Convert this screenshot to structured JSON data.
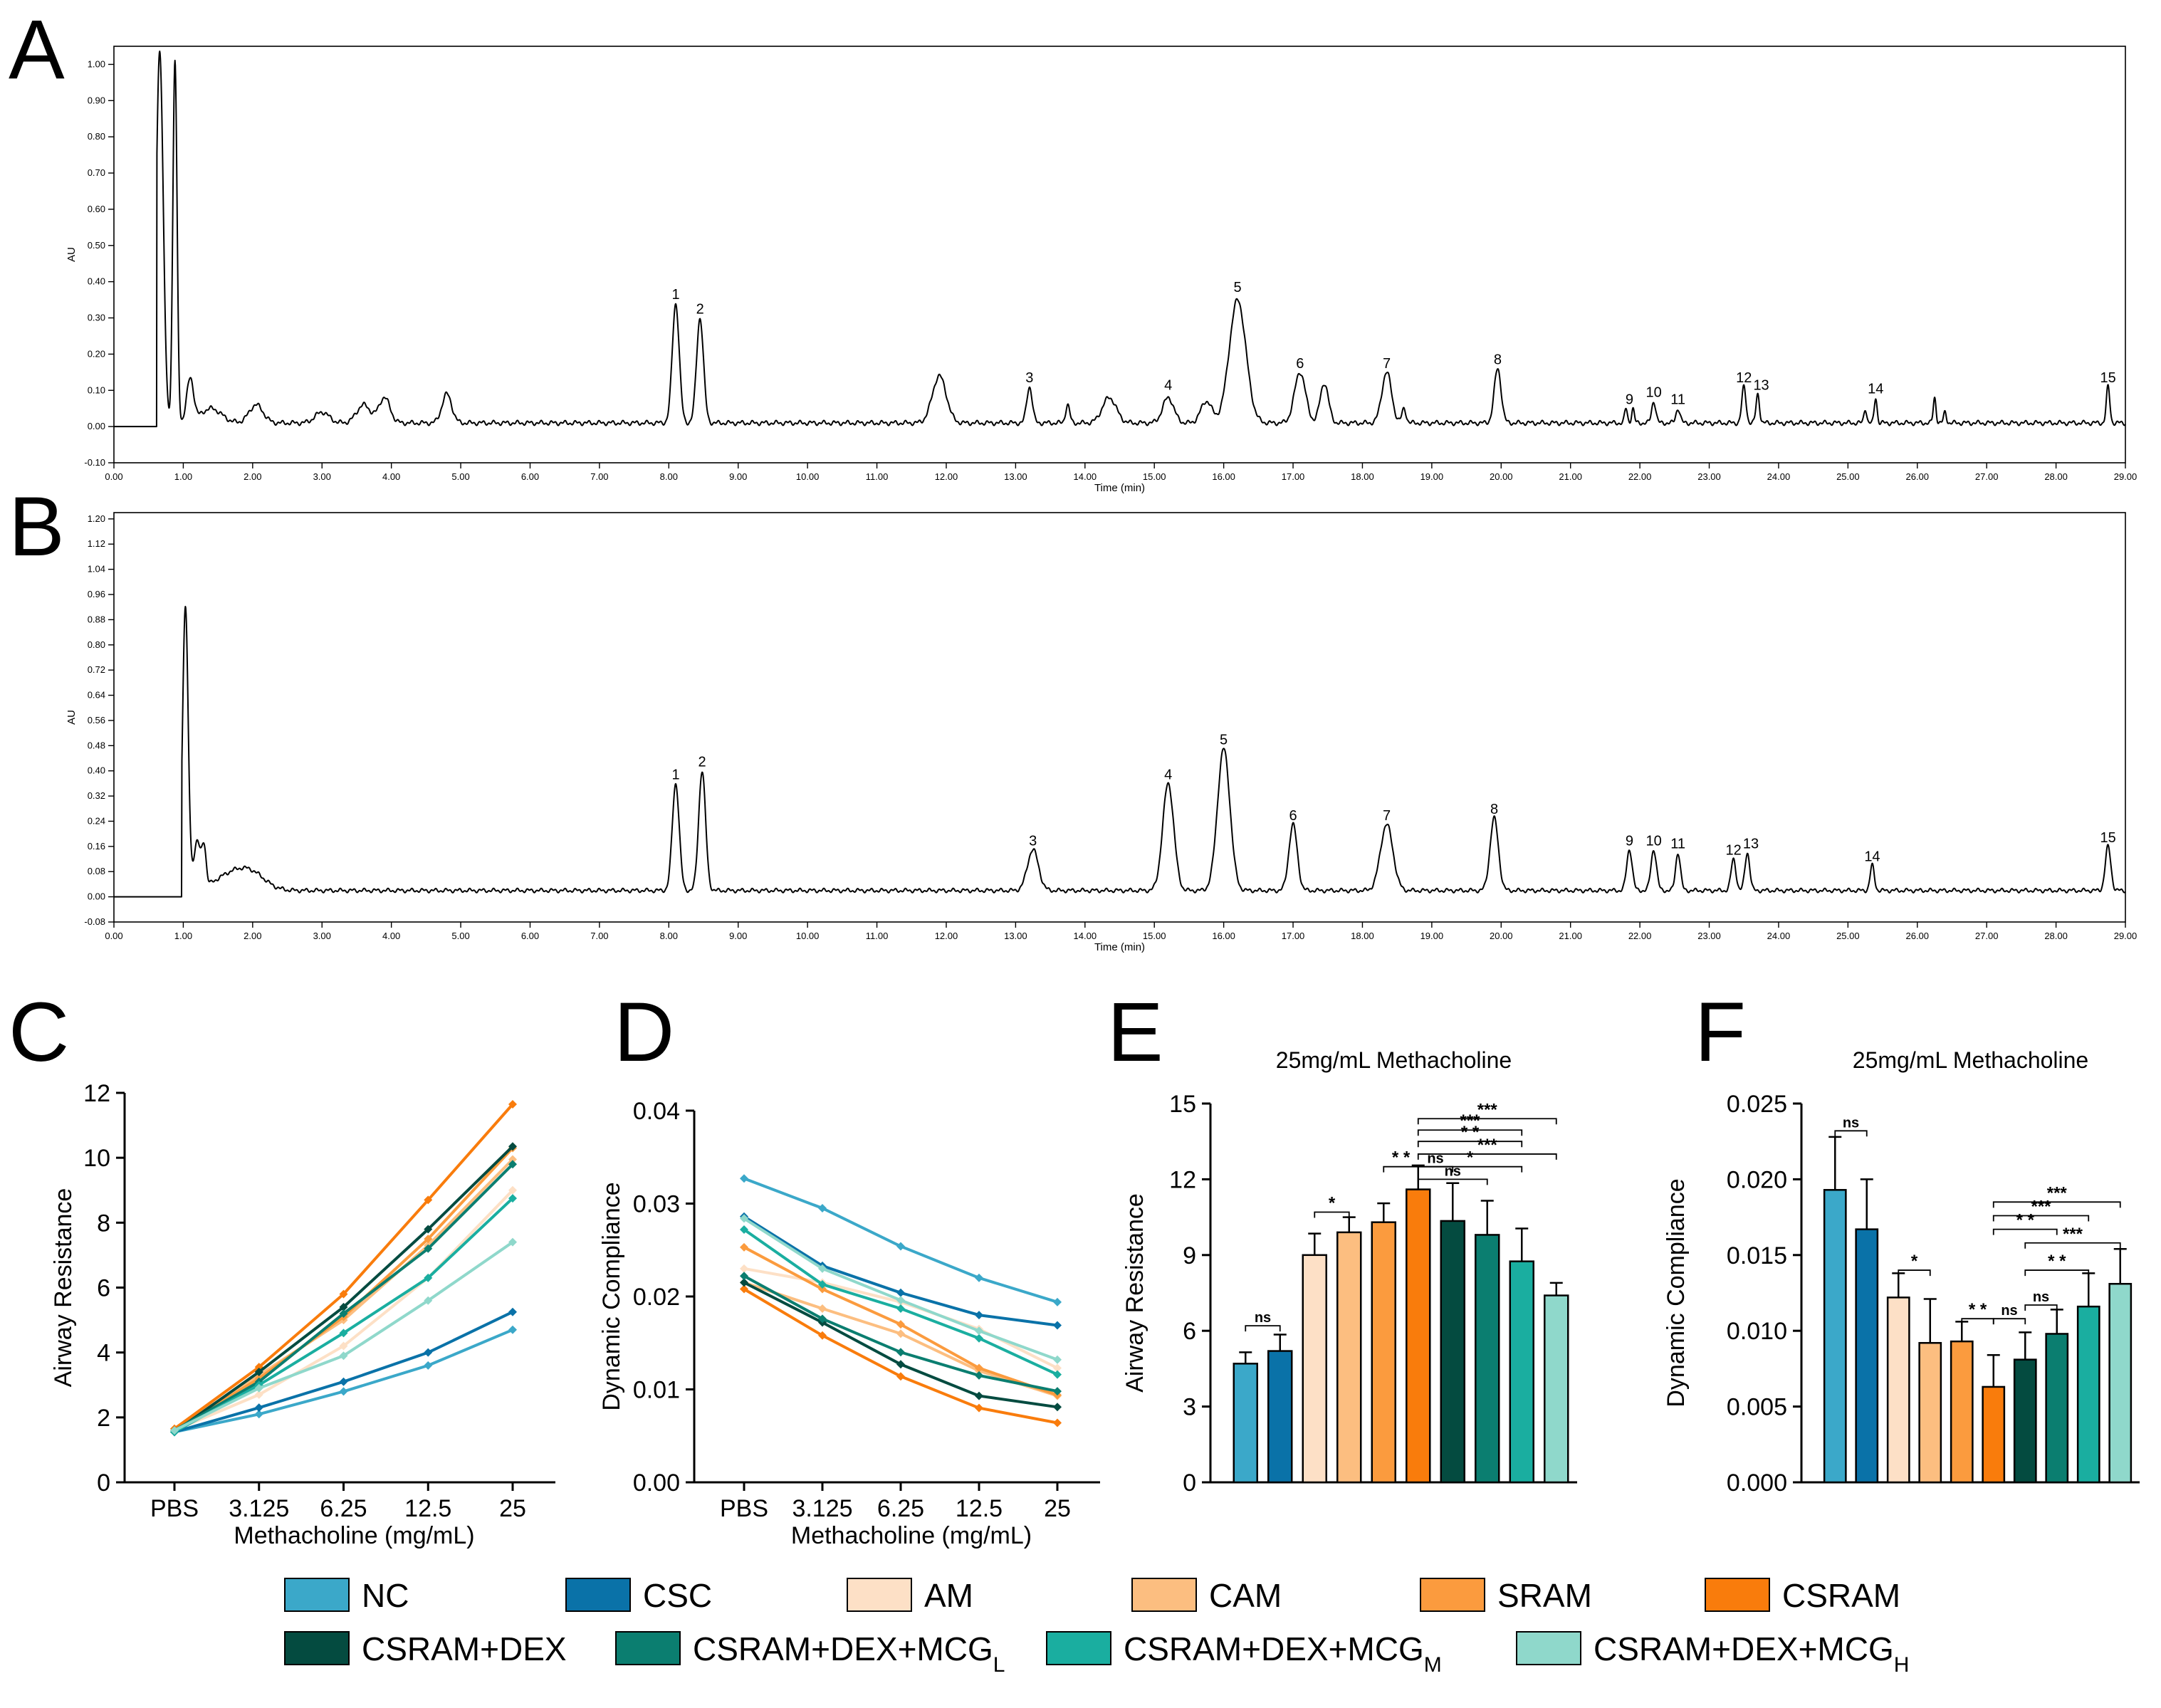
{
  "colors": {
    "NC": "#3ba8c9",
    "CSC": "#0a72a8",
    "AM": "#fde0c6",
    "CAM": "#fcbe80",
    "SRAM": "#fb9b3e",
    "CSRAM": "#f97c0c",
    "CSRAM+DEX": "#044b40",
    "CSRAM+DEX+MCG_L": "#0b7e70",
    "CSRAM+DEX+MCG_M": "#1aaea0",
    "CSRAM+DEX+MCG_H": "#8fd8cb"
  },
  "legend": [
    {
      "key": "NC",
      "label": "NC",
      "sub": ""
    },
    {
      "key": "CSC",
      "label": "CSC",
      "sub": ""
    },
    {
      "key": "AM",
      "label": "AM",
      "sub": ""
    },
    {
      "key": "CAM",
      "label": "CAM",
      "sub": ""
    },
    {
      "key": "SRAM",
      "label": "SRAM",
      "sub": ""
    },
    {
      "key": "CSRAM",
      "label": "CSRAM",
      "sub": ""
    },
    {
      "key": "CSRAM+DEX",
      "label": "CSRAM+DEX",
      "sub": ""
    },
    {
      "key": "CSRAM+DEX+MCG_L",
      "label": "CSRAM+DEX+MCG",
      "sub": "L"
    },
    {
      "key": "CSRAM+DEX+MCG_M",
      "label": "CSRAM+DEX+MCG",
      "sub": "M"
    },
    {
      "key": "CSRAM+DEX+MCG_H",
      "label": "CSRAM+DEX+MCG",
      "sub": "H"
    }
  ],
  "chart_data": [
    {
      "panel": "A",
      "type": "line",
      "xlabel": "Time (min)",
      "ylabel": "AU",
      "xlim": [
        0,
        29
      ],
      "ylim": [
        -0.1,
        1.05
      ],
      "x_ticks": [
        "0.00",
        "1.00",
        "2.00",
        "3.00",
        "4.00",
        "5.00",
        "6.00",
        "7.00",
        "8.00",
        "9.00",
        "10.00",
        "11.00",
        "12.00",
        "13.00",
        "14.00",
        "15.00",
        "16.00",
        "17.00",
        "18.00",
        "19.00",
        "20.00",
        "21.00",
        "22.00",
        "23.00",
        "24.00",
        "25.00",
        "26.00",
        "27.00",
        "28.00",
        "29.00"
      ],
      "y_ticks": [
        "-0.10",
        "0.00",
        "0.10",
        "0.20",
        "0.30",
        "0.40",
        "0.50",
        "0.60",
        "0.70",
        "0.80",
        "0.90",
        "1.00"
      ],
      "baseline": 0.01,
      "peaks": [
        [
          0.66,
          1.03,
          0.05
        ],
        [
          0.88,
          1.0,
          0.03
        ],
        [
          1.1,
          0.12,
          0.05
        ],
        [
          1.4,
          0.04,
          0.15
        ],
        [
          2.05,
          0.05,
          0.1
        ],
        [
          3.0,
          0.03,
          0.1
        ],
        [
          3.6,
          0.05,
          0.1
        ],
        [
          3.9,
          0.07,
          0.08
        ],
        [
          4.8,
          0.08,
          0.07
        ],
        [
          8.1,
          0.33,
          0.05
        ],
        [
          8.45,
          0.29,
          0.05
        ],
        [
          11.9,
          0.13,
          0.1
        ],
        [
          13.2,
          0.1,
          0.04
        ],
        [
          13.75,
          0.05,
          0.03
        ],
        [
          14.35,
          0.07,
          0.1
        ],
        [
          15.2,
          0.07,
          0.08
        ],
        [
          15.75,
          0.06,
          0.08
        ],
        [
          16.2,
          0.34,
          0.12
        ],
        [
          17.1,
          0.14,
          0.08
        ],
        [
          17.45,
          0.11,
          0.06
        ],
        [
          18.35,
          0.14,
          0.07
        ],
        [
          18.6,
          0.04,
          0.03
        ],
        [
          19.95,
          0.15,
          0.05
        ],
        [
          21.8,
          0.04,
          0.02
        ],
        [
          21.9,
          0.04,
          0.02
        ],
        [
          22.2,
          0.06,
          0.03
        ],
        [
          22.55,
          0.04,
          0.03
        ],
        [
          23.5,
          0.1,
          0.03
        ],
        [
          23.7,
          0.08,
          0.025
        ],
        [
          25.25,
          0.04,
          0.02
        ],
        [
          25.4,
          0.07,
          0.02
        ],
        [
          26.25,
          0.07,
          0.02
        ],
        [
          26.4,
          0.03,
          0.02
        ],
        [
          28.75,
          0.1,
          0.025
        ]
      ],
      "peak_labels": [
        {
          "n": "1",
          "t": 8.1,
          "h": 0.34
        },
        {
          "n": "2",
          "t": 8.45,
          "h": 0.3
        },
        {
          "n": "3",
          "t": 13.2,
          "h": 0.11
        },
        {
          "n": "4",
          "t": 15.2,
          "h": 0.09
        },
        {
          "n": "5",
          "t": 16.2,
          "h": 0.36
        },
        {
          "n": "6",
          "t": 17.1,
          "h": 0.15
        },
        {
          "n": "7",
          "t": 18.35,
          "h": 0.15
        },
        {
          "n": "8",
          "t": 19.95,
          "h": 0.16
        },
        {
          "n": "9",
          "t": 21.85,
          "h": 0.05
        },
        {
          "n": "10",
          "t": 22.2,
          "h": 0.07
        },
        {
          "n": "11",
          "t": 22.55,
          "h": 0.05
        },
        {
          "n": "12",
          "t": 23.5,
          "h": 0.11
        },
        {
          "n": "13",
          "t": 23.75,
          "h": 0.09
        },
        {
          "n": "14",
          "t": 25.4,
          "h": 0.08
        },
        {
          "n": "15",
          "t": 28.75,
          "h": 0.11
        }
      ]
    },
    {
      "panel": "B",
      "type": "line",
      "xlabel": "Time (min)",
      "ylabel": "AU",
      "xlim": [
        0,
        29
      ],
      "ylim": [
        -0.08,
        1.22
      ],
      "x_ticks": [
        "0.00",
        "1.00",
        "2.00",
        "3.00",
        "4.00",
        "5.00",
        "6.00",
        "7.00",
        "8.00",
        "9.00",
        "10.00",
        "11.00",
        "12.00",
        "13.00",
        "14.00",
        "15.00",
        "16.00",
        "17.00",
        "18.00",
        "19.00",
        "20.00",
        "21.00",
        "22.00",
        "23.00",
        "24.00",
        "25.00",
        "26.00",
        "27.00",
        "28.00",
        "29.00"
      ],
      "y_ticks": [
        "-0.08",
        "0.00",
        "0.08",
        "0.16",
        "0.24",
        "0.32",
        "0.40",
        "0.48",
        "0.56",
        "0.64",
        "0.72",
        "0.80",
        "0.88",
        "0.96",
        "1.04",
        "1.12",
        "1.20"
      ],
      "baseline": 0.02,
      "peaks": [
        [
          1.03,
          0.9,
          0.04
        ],
        [
          1.2,
          0.15,
          0.05
        ],
        [
          1.3,
          0.12,
          0.03
        ],
        [
          1.7,
          0.05,
          0.25
        ],
        [
          2.0,
          0.04,
          0.2
        ],
        [
          8.1,
          0.34,
          0.05
        ],
        [
          8.48,
          0.38,
          0.05
        ],
        [
          13.25,
          0.13,
          0.08
        ],
        [
          15.2,
          0.34,
          0.08
        ],
        [
          16.0,
          0.45,
          0.09
        ],
        [
          17.0,
          0.21,
          0.06
        ],
        [
          18.35,
          0.21,
          0.09
        ],
        [
          19.9,
          0.23,
          0.06
        ],
        [
          21.85,
          0.13,
          0.04
        ],
        [
          22.2,
          0.13,
          0.04
        ],
        [
          22.55,
          0.12,
          0.035
        ],
        [
          23.35,
          0.1,
          0.035
        ],
        [
          23.55,
          0.12,
          0.035
        ],
        [
          25.35,
          0.08,
          0.03
        ],
        [
          28.75,
          0.14,
          0.04
        ]
      ],
      "peak_labels": [
        {
          "n": "1",
          "t": 8.1,
          "h": 0.36
        },
        {
          "n": "2",
          "t": 8.48,
          "h": 0.4
        },
        {
          "n": "3",
          "t": 13.25,
          "h": 0.15
        },
        {
          "n": "4",
          "t": 15.2,
          "h": 0.36
        },
        {
          "n": "5",
          "t": 16.0,
          "h": 0.47
        },
        {
          "n": "6",
          "t": 17.0,
          "h": 0.23
        },
        {
          "n": "7",
          "t": 18.35,
          "h": 0.23
        },
        {
          "n": "8",
          "t": 19.9,
          "h": 0.25
        },
        {
          "n": "9",
          "t": 21.85,
          "h": 0.15
        },
        {
          "n": "10",
          "t": 22.2,
          "h": 0.15
        },
        {
          "n": "11",
          "t": 22.55,
          "h": 0.14
        },
        {
          "n": "12",
          "t": 23.35,
          "h": 0.12
        },
        {
          "n": "13",
          "t": 23.6,
          "h": 0.14
        },
        {
          "n": "14",
          "t": 25.35,
          "h": 0.1
        },
        {
          "n": "15",
          "t": 28.75,
          "h": 0.16
        }
      ]
    },
    {
      "panel": "C",
      "type": "line",
      "xlabel": "Methacholine (mg/mL)",
      "ylabel": "Airway Resistance",
      "categories": [
        "PBS",
        "3.125",
        "6.25",
        "12.5",
        "25"
      ],
      "ylim": [
        0,
        12
      ],
      "y_ticks": [
        "0",
        "2",
        "4",
        "6",
        "8",
        "10",
        "12"
      ],
      "series": [
        {
          "name": "NC",
          "values": [
            1.55,
            2.1,
            2.8,
            3.6,
            4.7
          ]
        },
        {
          "name": "CSC",
          "values": [
            1.55,
            2.3,
            3.1,
            4.0,
            5.25
          ]
        },
        {
          "name": "AM",
          "values": [
            1.6,
            2.7,
            4.2,
            6.3,
            9.0
          ]
        },
        {
          "name": "CAM",
          "values": [
            1.65,
            3.3,
            5.0,
            7.3,
            9.95
          ]
        },
        {
          "name": "SRAM",
          "values": [
            1.6,
            3.2,
            5.1,
            7.5,
            10.3
          ]
        },
        {
          "name": "CSRAM",
          "values": [
            1.65,
            3.55,
            5.8,
            8.7,
            11.65
          ]
        },
        {
          "name": "CSRAM+DEX",
          "values": [
            1.55,
            3.4,
            5.4,
            7.8,
            10.35
          ]
        },
        {
          "name": "CSRAM+DEX+MCG_L",
          "values": [
            1.6,
            3.1,
            5.2,
            7.2,
            9.8
          ]
        },
        {
          "name": "CSRAM+DEX+MCG_M",
          "values": [
            1.55,
            3.0,
            4.6,
            6.3,
            8.75
          ]
        },
        {
          "name": "CSRAM+DEX+MCG_H",
          "values": [
            1.6,
            2.9,
            3.9,
            5.6,
            7.4
          ]
        }
      ]
    },
    {
      "panel": "D",
      "type": "line",
      "xlabel": "Methacholine (mg/mL)",
      "ylabel": "Dynamic Compliance",
      "categories": [
        "PBS",
        "3.125",
        "6.25",
        "12.5",
        "25"
      ],
      "ylim": [
        0,
        0.04
      ],
      "y_ticks": [
        "0.00",
        "0.01",
        "0.02",
        "0.03",
        "0.04"
      ],
      "series": [
        {
          "name": "NC",
          "values": [
            0.0327,
            0.0295,
            0.0254,
            0.022,
            0.0194
          ]
        },
        {
          "name": "CSC",
          "values": [
            0.0286,
            0.0233,
            0.0204,
            0.018,
            0.0169
          ]
        },
        {
          "name": "AM",
          "values": [
            0.023,
            0.0215,
            0.0194,
            0.0165,
            0.0123
          ]
        },
        {
          "name": "CAM",
          "values": [
            0.0215,
            0.0187,
            0.016,
            0.012,
            0.0093
          ]
        },
        {
          "name": "SRAM",
          "values": [
            0.0253,
            0.0208,
            0.017,
            0.0123,
            0.0094
          ]
        },
        {
          "name": "CSRAM",
          "values": [
            0.0208,
            0.0158,
            0.0114,
            0.008,
            0.0064
          ]
        },
        {
          "name": "CSRAM+DEX",
          "values": [
            0.0215,
            0.0172,
            0.0127,
            0.0093,
            0.0081
          ]
        },
        {
          "name": "CSRAM+DEX+MCG_L",
          "values": [
            0.0222,
            0.0176,
            0.014,
            0.0115,
            0.0098
          ]
        },
        {
          "name": "CSRAM+DEX+MCG_M",
          "values": [
            0.0272,
            0.0213,
            0.0187,
            0.0155,
            0.0116
          ]
        },
        {
          "name": "CSRAM+DEX+MCG_H",
          "values": [
            0.0284,
            0.023,
            0.0196,
            0.0163,
            0.0132
          ]
        }
      ]
    },
    {
      "panel": "E",
      "type": "bar",
      "title": "25mg/mL Methacholine",
      "ylabel": "Airway Resistance",
      "ylim": [
        0,
        15
      ],
      "y_ticks": [
        "0",
        "3",
        "6",
        "9",
        "12",
        "15"
      ],
      "categories": [
        "NC",
        "CSC",
        "AM",
        "CAM",
        "SRAM",
        "CSRAM",
        "CSRAM+DEX",
        "CSRAM+DEX+MCG_L",
        "CSRAM+DEX+MCG_M",
        "CSRAM+DEX+MCG_H"
      ],
      "values": [
        4.7,
        5.2,
        9.0,
        9.9,
        10.3,
        11.6,
        10.35,
        9.8,
        8.75,
        7.4
      ],
      "errors": [
        0.45,
        0.65,
        0.85,
        0.6,
        0.75,
        0.95,
        1.5,
        1.35,
        1.3,
        0.5
      ],
      "comparisons": [
        {
          "a": 0,
          "b": 1,
          "label": "ns",
          "y": 6.2
        },
        {
          "a": 2,
          "b": 3,
          "label": "*",
          "y": 10.7
        },
        {
          "a": 4,
          "b": 5,
          "label": "* *",
          "y": 12.5
        },
        {
          "a": 5,
          "b": 6,
          "label": "ns",
          "y": 12.5
        },
        {
          "a": 5,
          "b": 7,
          "label": "ns",
          "y": 12.0
        },
        {
          "a": 5,
          "b": 8,
          "label": "*",
          "y": 12.5
        },
        {
          "a": 5,
          "b": 9,
          "label": "***",
          "y": 13.0
        },
        {
          "a": 5,
          "b": 8,
          "label": "* *",
          "y": 13.5
        },
        {
          "a": 5,
          "b": 8,
          "label": "***",
          "y": 13.95
        },
        {
          "a": 5,
          "b": 9,
          "label": "***",
          "y": 14.4
        }
      ]
    },
    {
      "panel": "F",
      "type": "bar",
      "title": "25mg/mL Methacholine",
      "ylabel": "Dynamic Compliance",
      "ylim": [
        0,
        0.025
      ],
      "y_ticks": [
        "0.000",
        "0.005",
        "0.010",
        "0.015",
        "0.020",
        "0.025"
      ],
      "categories": [
        "NC",
        "CSC",
        "AM",
        "CAM",
        "SRAM",
        "CSRAM",
        "CSRAM+DEX",
        "CSRAM+DEX+MCG_L",
        "CSRAM+DEX+MCG_M",
        "CSRAM+DEX+MCG_H"
      ],
      "values": [
        0.0193,
        0.0167,
        0.0122,
        0.0092,
        0.0093,
        0.0063,
        0.0081,
        0.0098,
        0.0116,
        0.0131
      ],
      "errors": [
        0.0035,
        0.0033,
        0.0016,
        0.0029,
        0.0013,
        0.0021,
        0.0018,
        0.0016,
        0.0022,
        0.0023
      ],
      "comparisons": [
        {
          "a": 0,
          "b": 1,
          "label": "ns",
          "y": 0.0232
        },
        {
          "a": 2,
          "b": 3,
          "label": "*",
          "y": 0.014
        },
        {
          "a": 4,
          "b": 5,
          "label": "* *",
          "y": 0.0108
        },
        {
          "a": 5,
          "b": 6,
          "label": "ns",
          "y": 0.0108
        },
        {
          "a": 6,
          "b": 7,
          "label": "ns",
          "y": 0.0117
        },
        {
          "a": 6,
          "b": 8,
          "label": "* *",
          "y": 0.014
        },
        {
          "a": 6,
          "b": 9,
          "label": "***",
          "y": 0.0158
        },
        {
          "a": 5,
          "b": 7,
          "label": "* *",
          "y": 0.0167
        },
        {
          "a": 5,
          "b": 8,
          "label": "***",
          "y": 0.0176
        },
        {
          "a": 5,
          "b": 9,
          "label": "***",
          "y": 0.0185
        }
      ]
    }
  ]
}
